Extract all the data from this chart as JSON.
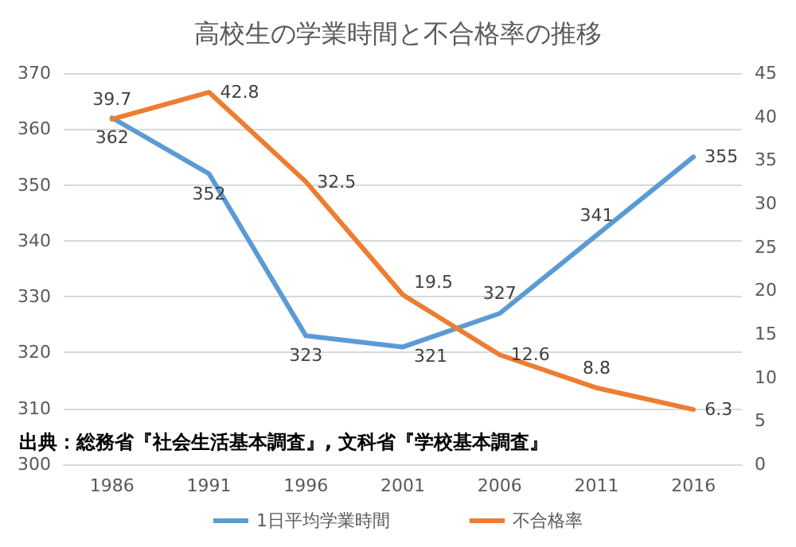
{
  "chart_data": {
    "type": "line",
    "title": "高校生の学業時間と不合格率の推移",
    "categories": [
      "1986",
      "1991",
      "1996",
      "2001",
      "2006",
      "2011",
      "2016"
    ],
    "series": [
      {
        "name": "1日平均学業時間",
        "color": "#5b9bd5",
        "values": [
          362,
          352,
          323,
          321,
          327,
          341,
          355
        ]
      },
      {
        "name": "不合格率",
        "color": "#ed7d31",
        "axis": "y2",
        "values": [
          39.7,
          42.8,
          32.5,
          19.5,
          12.6,
          8.8,
          6.3
        ]
      }
    ],
    "ylim": [
      300,
      370
    ],
    "yticks": [
      300,
      310,
      320,
      330,
      340,
      350,
      360,
      370
    ],
    "y2lim": [
      0,
      45
    ],
    "y2ticks": [
      0,
      5,
      10,
      15,
      20,
      25,
      30,
      35,
      40,
      45
    ],
    "annotations": [
      "出典：総務省『社会生活基本調査』, 文科省『学校基本調査』"
    ],
    "data_labels": true,
    "grid": "y",
    "legend": "bottom",
    "marker": "none",
    "line_style": "solid"
  }
}
